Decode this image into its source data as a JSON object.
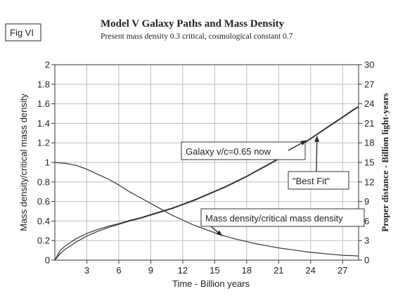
{
  "figure_label": "Fig VI",
  "chart_data": {
    "type": "line",
    "title": "Model V Galaxy Paths and Mass Density",
    "subtitle": "Present mass density 0.3 critical, cosmological constant 0.7",
    "xlabel": "Time - Billion years",
    "ylabel_left": "Mass density/critical mass density",
    "ylabel_right": "Proper distance - Billion light-years",
    "xlim": [
      0,
      28.5
    ],
    "ylim_left": [
      0,
      2
    ],
    "ylim_right": [
      0,
      30
    ],
    "x_ticks": [
      "3",
      "6",
      "9",
      "12",
      "15",
      "18",
      "21",
      "24",
      "27"
    ],
    "y_ticks_left": [
      "0",
      "0.2",
      "0.4",
      "0.6",
      "0.8",
      "1",
      "1.2",
      "1.4",
      "1.6",
      "1.8",
      "2"
    ],
    "y_ticks_right": [
      "0",
      "3",
      "6",
      "9",
      "12",
      "15",
      "18",
      "21",
      "24",
      "27",
      "30"
    ],
    "grid": true,
    "series": [
      {
        "name": "Galaxy v/c=0.65 now",
        "axis": "right",
        "color": "#333333",
        "points": [
          [
            0,
            0
          ],
          [
            0.5,
            1.5
          ],
          [
            1,
            2.2
          ],
          [
            2,
            3.3
          ],
          [
            3,
            4.1
          ],
          [
            4,
            4.7
          ],
          [
            5,
            5.2
          ],
          [
            6,
            5.6
          ],
          [
            7,
            6.1
          ],
          [
            8,
            6.5
          ],
          [
            9,
            7.0
          ],
          [
            10,
            7.5
          ],
          [
            11,
            8.0
          ],
          [
            12,
            8.6
          ],
          [
            13,
            9.2
          ],
          [
            14,
            9.9
          ],
          [
            15,
            10.6
          ],
          [
            16,
            11.3
          ],
          [
            17,
            12.1
          ],
          [
            18,
            12.9
          ],
          [
            19,
            13.8
          ],
          [
            20,
            14.7
          ],
          [
            21,
            15.6
          ],
          [
            22,
            16.6
          ],
          [
            23,
            17.6
          ],
          [
            24,
            18.7
          ],
          [
            25,
            19.8
          ],
          [
            26,
            20.9
          ],
          [
            27,
            22.0
          ],
          [
            28,
            23.1
          ],
          [
            28.5,
            23.6
          ]
        ]
      },
      {
        "name": "\"Best Fit\"",
        "axis": "right",
        "color": "#333333",
        "points": [
          [
            0,
            0
          ],
          [
            0.5,
            1.0
          ],
          [
            1,
            1.7
          ],
          [
            2,
            2.8
          ],
          [
            3,
            3.7
          ],
          [
            4,
            4.4
          ],
          [
            5,
            5.0
          ],
          [
            6,
            5.5
          ],
          [
            7,
            6.0
          ],
          [
            8,
            6.4
          ],
          [
            9,
            6.9
          ],
          [
            10,
            7.4
          ],
          [
            11,
            7.9
          ],
          [
            12,
            8.5
          ],
          [
            13,
            9.1
          ],
          [
            14,
            9.8
          ],
          [
            15,
            10.5
          ],
          [
            16,
            11.2
          ],
          [
            17,
            12.0
          ],
          [
            18,
            12.8
          ],
          [
            19,
            13.7
          ],
          [
            20,
            14.6
          ],
          [
            21,
            15.5
          ],
          [
            22,
            16.5
          ],
          [
            23,
            17.5
          ],
          [
            24,
            18.6
          ],
          [
            25,
            19.7
          ],
          [
            26,
            20.8
          ],
          [
            27,
            21.9
          ],
          [
            28,
            23.0
          ],
          [
            28.5,
            23.5
          ]
        ]
      },
      {
        "name": "Mass density/critical mass density",
        "axis": "left",
        "color": "#333333",
        "points": [
          [
            0,
            1.0
          ],
          [
            1,
            0.99
          ],
          [
            2,
            0.97
          ],
          [
            3,
            0.93
          ],
          [
            4,
            0.88
          ],
          [
            5,
            0.83
          ],
          [
            6,
            0.77
          ],
          [
            7,
            0.7
          ],
          [
            8,
            0.64
          ],
          [
            9,
            0.58
          ],
          [
            10,
            0.52
          ],
          [
            11,
            0.46
          ],
          [
            12,
            0.41
          ],
          [
            13,
            0.36
          ],
          [
            14,
            0.32
          ],
          [
            15,
            0.28
          ],
          [
            16,
            0.245
          ],
          [
            17,
            0.215
          ],
          [
            18,
            0.19
          ],
          [
            19,
            0.165
          ],
          [
            20,
            0.145
          ],
          [
            21,
            0.125
          ],
          [
            22,
            0.11
          ],
          [
            23,
            0.095
          ],
          [
            24,
            0.08
          ],
          [
            25,
            0.07
          ],
          [
            26,
            0.06
          ],
          [
            27,
            0.05
          ],
          [
            28,
            0.045
          ],
          [
            28.5,
            0.042
          ]
        ]
      }
    ],
    "annotations": [
      {
        "text": "Galaxy v/c=0.65 now",
        "target_series": 0
      },
      {
        "text": "\"Best Fit\"",
        "target_series": 1
      },
      {
        "text": "Mass density/critical mass density",
        "target_series": 2
      }
    ]
  }
}
